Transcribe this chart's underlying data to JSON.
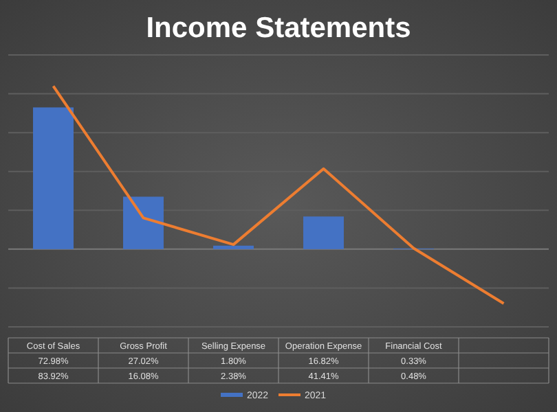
{
  "chart_data": {
    "type": "bar",
    "title": "Income Statements",
    "categories": [
      "Cost of Sales",
      "Gross Profit",
      "Selling Expense",
      "Operation Expense",
      "Financial Cost",
      null
    ],
    "series": [
      {
        "name": "2022",
        "color": "#4472c4",
        "values": [
          72.98,
          27.02,
          1.8,
          16.82,
          0.33,
          null
        ],
        "value_labels": [
          "72.98%",
          "27.02%",
          "1.80%",
          "16.82%",
          "0.33%",
          null
        ]
      },
      {
        "name": "2021",
        "type": "line",
        "color": "#ed7d31",
        "values": [
          83.92,
          16.08,
          2.38,
          41.41,
          0.48,
          -28
        ],
        "value_labels": [
          "83.92%",
          "16.08%",
          "2.38%",
          "41.41%",
          "0.48%",
          null
        ]
      }
    ],
    "ylim": [
      -40,
      100
    ],
    "yticks": [
      {
        "value": -40,
        "label": null
      },
      {
        "value": -20,
        "label": null
      },
      {
        "value": 0,
        "label": null
      },
      {
        "value": 20,
        "label": null
      },
      {
        "value": 40,
        "label": null
      },
      {
        "value": 60,
        "label": null
      },
      {
        "value": 80,
        "label": null
      },
      {
        "value": 100,
        "label": null
      }
    ],
    "grid": "y",
    "legend": "bottom",
    "marker": "none"
  }
}
